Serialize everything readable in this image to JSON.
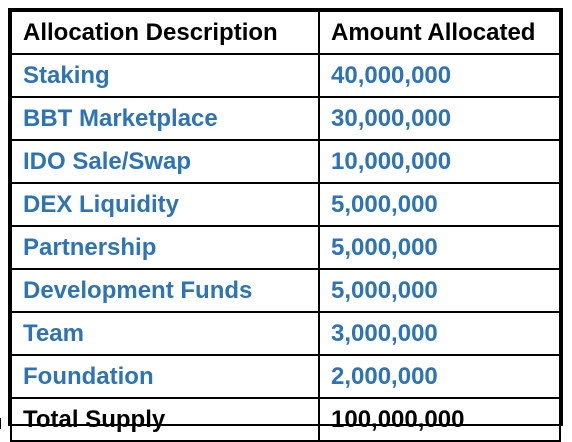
{
  "table": {
    "headers": [
      "Allocation Description",
      "Amount Allocated"
    ],
    "rows": [
      {
        "description": "Staking",
        "amount": "40,000,000"
      },
      {
        "description": "BBT Marketplace",
        "amount": "30,000,000"
      },
      {
        "description": "IDO Sale/Swap",
        "amount": "10,000,000"
      },
      {
        "description": "DEX Liquidity",
        "amount": "5,000,000"
      },
      {
        "description": "Partnership",
        "amount": "5,000,000"
      },
      {
        "description": "Development Funds",
        "amount": "5,000,000"
      },
      {
        "description": "Team",
        "amount": "3,000,000"
      },
      {
        "description": "Foundation",
        "amount": "2,000,000"
      }
    ],
    "total": {
      "description": "Total Supply",
      "amount": "100,000,000"
    }
  },
  "colors": {
    "header_text": "#000000",
    "allocation_text": "#2e74b5",
    "total_text": "#000000",
    "border": "#000000"
  }
}
